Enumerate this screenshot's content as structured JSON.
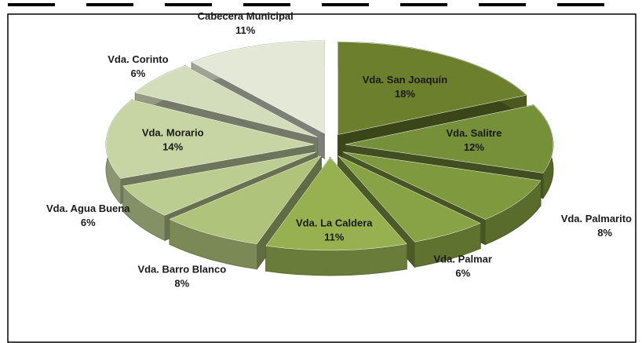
{
  "chart_data": {
    "type": "pie3d",
    "categories": [
      "Vda. San Joaquín",
      "Vda. Salitre",
      "Vda. Palmarito",
      "Vda. Palmar",
      "Vda. La Caldera",
      "Vda. Barro Blanco",
      "Vda. Agua Buena",
      "Vda. Morario",
      "Vda. Corinto",
      "Cabecera Municipal"
    ],
    "values": [
      18,
      12,
      8,
      6,
      11,
      8,
      6,
      14,
      6,
      11
    ],
    "value_labels": [
      "18%",
      "12%",
      "8%",
      "6%",
      "11%",
      "8%",
      "6%",
      "14%",
      "6%",
      "11%"
    ],
    "colors": [
      "#6b7f2c",
      "#76903a",
      "#7f9a3e",
      "#88a345",
      "#97b151",
      "#afc47a",
      "#bccd92",
      "#c6d5a3",
      "#d3ddbb",
      "#e3e9d6"
    ]
  }
}
